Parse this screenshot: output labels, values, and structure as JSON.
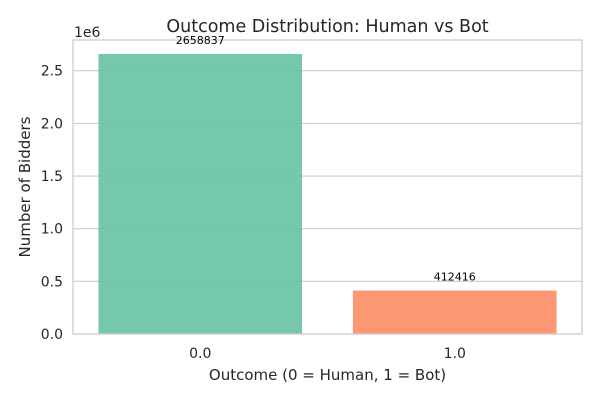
{
  "chart_data": {
    "type": "bar",
    "title": "Outcome Distribution: Human vs Bot",
    "xlabel": "Outcome (0 = Human, 1 = Bot)",
    "ylabel": "Number of Bidders",
    "categories": [
      "0.0",
      "1.0"
    ],
    "values": [
      2658837,
      412416
    ],
    "data_labels": [
      "2658837",
      "412416"
    ],
    "colors": [
      "#66c2a5",
      "#fc8d62"
    ],
    "bar_alpha": 0.9,
    "y_offset_label": "1e6",
    "y_ticks": [
      0,
      500000,
      1000000,
      1500000,
      2000000,
      2500000
    ],
    "y_tick_labels": [
      "0.0",
      "0.5",
      "1.0",
      "1.5",
      "2.0",
      "2.5"
    ],
    "ylim": [
      0,
      2791779
    ],
    "grid": "horizontal",
    "legend": "none",
    "grid_color": "#cccccc",
    "spine_color": "#cccccc"
  }
}
